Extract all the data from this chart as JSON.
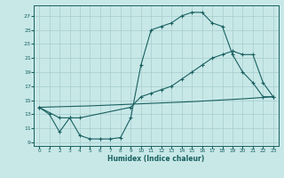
{
  "xlabel": "Humidex (Indice chaleur)",
  "background_color": "#c8e8e8",
  "grid_color": "#a8cccc",
  "line_color": "#1a6060",
  "xlim": [
    -0.5,
    23.5
  ],
  "ylim": [
    8.5,
    28.5
  ],
  "xticks": [
    0,
    1,
    2,
    3,
    4,
    5,
    6,
    7,
    8,
    9,
    10,
    11,
    12,
    13,
    14,
    15,
    16,
    17,
    18,
    19,
    20,
    21,
    22,
    23
  ],
  "yticks": [
    9,
    11,
    13,
    15,
    17,
    19,
    21,
    23,
    25,
    27
  ],
  "curve1_x": [
    0,
    1,
    2,
    3,
    4,
    5,
    6,
    7,
    8,
    9,
    10,
    11,
    12,
    13,
    14,
    15,
    16,
    17,
    18,
    19,
    20,
    21,
    22,
    23
  ],
  "curve1_y": [
    14,
    13,
    10.5,
    12.5,
    10,
    9.5,
    9.5,
    9.5,
    9.7,
    12.5,
    20,
    25,
    25.5,
    26,
    27,
    27.5,
    27.5,
    26,
    25.5,
    21.5,
    19,
    17.5,
    15.5,
    15.5
  ],
  "curve2_x": [
    0,
    2,
    3,
    4,
    9,
    10,
    11,
    12,
    13,
    14,
    15,
    16,
    17,
    18,
    19,
    20,
    21,
    22,
    23
  ],
  "curve2_y": [
    14,
    12.5,
    12.5,
    12.5,
    14,
    15.5,
    16,
    16.5,
    17,
    18,
    19,
    20,
    21,
    21.5,
    22,
    21.5,
    21.5,
    17.5,
    15.5
  ],
  "curve3_x": [
    0,
    5,
    10,
    15,
    20,
    23
  ],
  "curve3_y": [
    14.0,
    14.2,
    14.5,
    14.8,
    15.2,
    15.5
  ]
}
